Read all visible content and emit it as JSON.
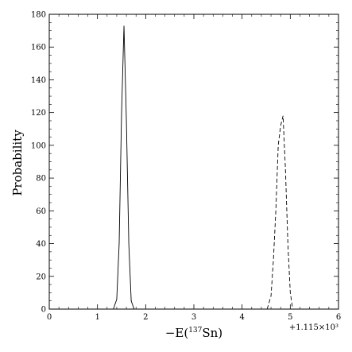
{
  "chart_data": {
    "type": "line",
    "title": "",
    "xlabel_prefix": "−E(",
    "xlabel_sup": "137",
    "xlabel_suffix": "Sn)",
    "ylabel": "Probability",
    "x_offset_text": "+1.115×10³",
    "xlim": [
      0,
      6
    ],
    "ylim": [
      0,
      180
    ],
    "x_ticks": [
      0,
      1,
      2,
      3,
      4,
      5,
      6
    ],
    "y_ticks": [
      0,
      20,
      40,
      60,
      80,
      100,
      120,
      140,
      160,
      180
    ],
    "x_ticklabels": [
      "0",
      "1",
      "2",
      "3",
      "4",
      "5",
      "6"
    ],
    "y_ticklabels": [
      "0",
      "20",
      "40",
      "60",
      "80",
      "100",
      "120",
      "140",
      "160",
      "180"
    ],
    "grid": false,
    "series": [
      {
        "style": "solid",
        "color": "#000000",
        "x": [
          1.33,
          1.4,
          1.45,
          1.5,
          1.55,
          1.6,
          1.65,
          1.7,
          1.76
        ],
        "y": [
          0,
          6,
          40,
          120,
          173,
          115,
          40,
          5,
          0
        ]
      },
      {
        "style": "dashed",
        "color": "#000000",
        "x": [
          4.52,
          4.6,
          4.65,
          4.7,
          4.75,
          4.8,
          4.85,
          4.9,
          4.95,
          5.0,
          5.05
        ],
        "y": [
          0,
          8,
          30,
          60,
          100,
          112,
          118,
          85,
          40,
          10,
          0
        ]
      }
    ]
  }
}
